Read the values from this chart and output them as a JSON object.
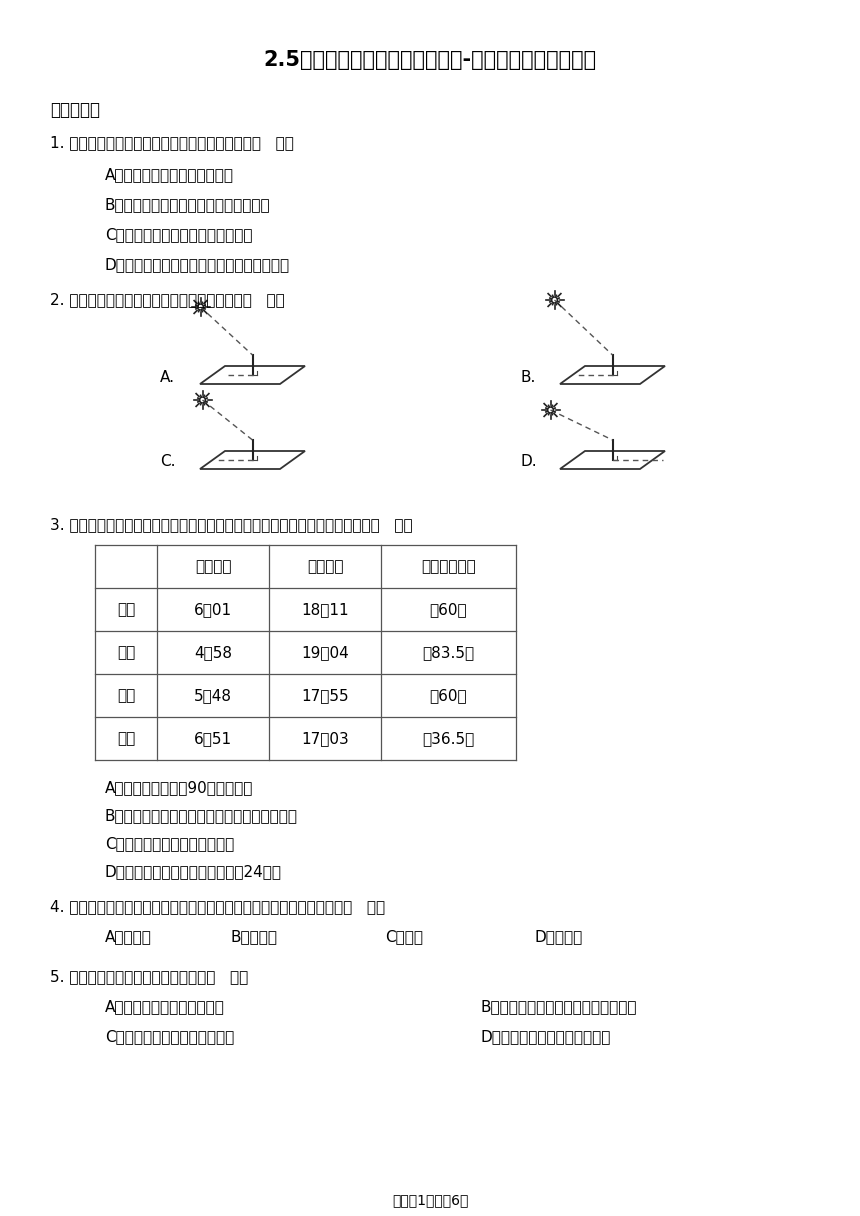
{
  "title": "2.5影长的四季变化（同步练习）-六年级上册科学教科版",
  "background_color": "#ffffff",
  "text_color": "#000000",
  "section1_title": "一、选择题",
  "q1_text": "1. 圭表是我国古代的天文仪器，古人用圭表观测（   ）。",
  "q1_options": [
    "A．一天中物体影长的变化规律",
    "B．一年中正午时分物体影长的变化规律",
    "C．一天中物体影子方向的变化规律",
    "D．一年中正午时分物体影子方向的变化规律"
  ],
  "q2_text": "2. 夏至这一天，我们杭州正午影子最有可能是（   ）。",
  "q3_text": "3. 如图是一年中杭州日出日落时间与正午太阳仰角变化表。下列说法错误的是（   ）。",
  "table_headers": [
    "",
    "日出时间",
    "日落时间",
    "正午太阳仰角"
  ],
  "table_rows": [
    [
      "春分",
      "6：01",
      "18：11",
      "约60度"
    ],
    [
      "夏至",
      "4：58",
      "19：04",
      "约83.5度"
    ],
    [
      "秋分",
      "5：48",
      "17：55",
      "约60度"
    ],
    [
      "冬至",
      "6：51",
      "17：03",
      "约36.5度"
    ]
  ],
  "q3_options": [
    "A．夏至日正午阳光90度照射杭州",
    "B．圭表的圭是有刻度的平面，可帮助读出影长",
    "C．自制圭表要保证圭和表垂直",
    "D．古人利用圭表测量影长划分出24节气"
  ],
  "q4_text": "4. 一年中，同一地点不同节日，校园的旗杆正午时分影子最长的一天是（   ）。",
  "q4_options": [
    "A．儿童节",
    "B．劳动节",
    "C．元旦",
    "D．中秋节"
  ],
  "q5_text": "5. 关于古代圭表，下列说法错误的是（   ）。",
  "q5_options_col1": [
    "A．圭表一般放在固定的地方",
    "C．古人用圭表确定二十四节气"
  ],
  "q5_options_col2": [
    "B．圭表被用来确定一天中的不同时辰",
    "D．圭表由圭和表两个部分组成"
  ],
  "footer": "试卷第1页，兲6页"
}
